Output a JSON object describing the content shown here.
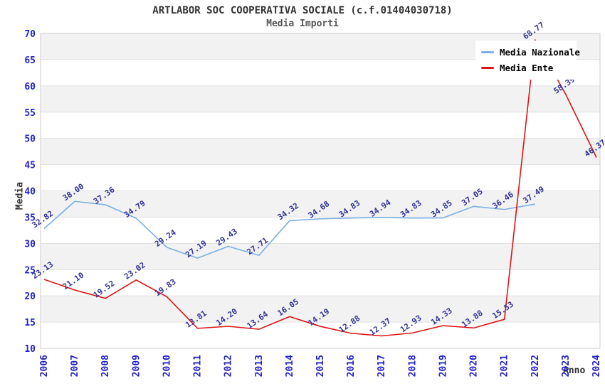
{
  "header": {
    "title": "ARTLABOR SOC COOPERATIVA SOCIALE (c.f.01404030718)",
    "subtitle": "Media Importi"
  },
  "axes": {
    "ylabel": "Media",
    "xlabel": "Anno"
  },
  "legend": {
    "items": [
      {
        "label": "Media Nazionale",
        "color": "#7cb0e2"
      },
      {
        "label": "Media Ente",
        "color": "#dd1515"
      }
    ]
  },
  "chart_data": {
    "type": "line",
    "title": "ARTLABOR SOC COOPERATIVA SOCIALE (c.f.01404030718)",
    "subtitle": "Media Importi",
    "xlabel": "Anno",
    "ylabel": "Media",
    "x": [
      2006,
      2007,
      2008,
      2009,
      2010,
      2011,
      2012,
      2013,
      2014,
      2015,
      2016,
      2017,
      2018,
      2019,
      2020,
      2021,
      2022,
      2023,
      2024
    ],
    "series": [
      {
        "name": "Media Nazionale",
        "color": "#7cb0e2",
        "values": [
          32.82,
          38.0,
          37.36,
          34.79,
          29.24,
          27.19,
          29.43,
          27.71,
          34.32,
          34.68,
          34.83,
          34.94,
          34.83,
          34.85,
          37.05,
          36.46,
          37.49,
          null,
          null
        ]
      },
      {
        "name": "Media Ente",
        "color": "#dd1515",
        "values": [
          23.13,
          21.1,
          19.52,
          23.02,
          19.83,
          13.81,
          14.2,
          13.64,
          16.05,
          14.19,
          12.88,
          12.37,
          12.93,
          14.33,
          13.88,
          15.53,
          68.77,
          58.39,
          46.37
        ]
      }
    ],
    "ylim": [
      10,
      70
    ],
    "ytick_step": 5,
    "grid": true,
    "legend_position": "top-right",
    "label_decimals": 2,
    "style": {
      "band_color": "#f2f2f2",
      "grid_color": "#e0e0e0",
      "border_color": "#cccccc",
      "tick_label_color": "#2222cc",
      "data_label_color": "#333399"
    }
  }
}
